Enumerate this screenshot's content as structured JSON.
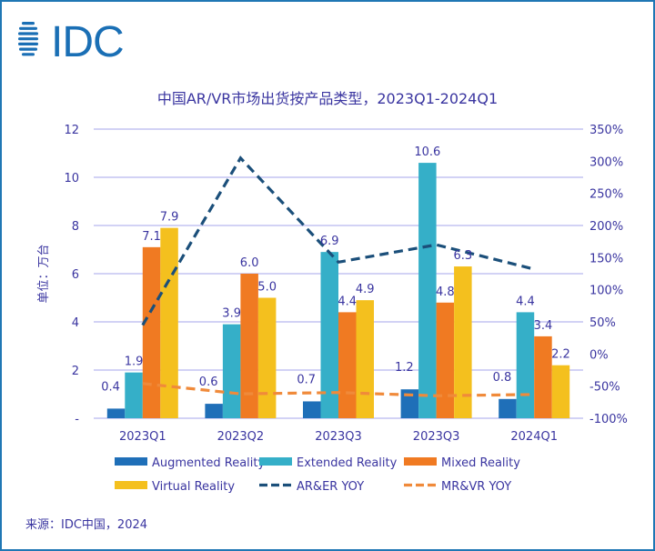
{
  "logo": {
    "text": "IDC",
    "color": "#1a6fb5"
  },
  "source": "来源：IDC中国，2024",
  "chart_data": {
    "type": "bar",
    "title": "中国AR/VR市场出货按产品类型，2023Q1-2024Q1",
    "ylabel": "单位：万台",
    "categories": [
      "2023Q1",
      "2023Q2",
      "2023Q3",
      "2023Q3",
      "2024Q1"
    ],
    "ylim": [
      0,
      12
    ],
    "yticks": [
      "-",
      "2",
      "4",
      "6",
      "8",
      "10",
      "12"
    ],
    "y2lim": [
      -100,
      350
    ],
    "y2ticks": [
      "-100%",
      "-50%",
      "0%",
      "50%",
      "100%",
      "150%",
      "200%",
      "250%",
      "300%",
      "350%"
    ],
    "grid": true,
    "legend": "bottom",
    "series": [
      {
        "name": "Augmented Reality",
        "kind": "bar",
        "color": "#1f6fb8",
        "values": [
          0.4,
          0.6,
          0.7,
          1.2,
          0.8
        ]
      },
      {
        "name": "Extended Reality",
        "kind": "bar",
        "color": "#35afc8",
        "values": [
          1.9,
          3.9,
          6.9,
          10.6,
          4.4
        ]
      },
      {
        "name": "Mixed Reality",
        "kind": "bar",
        "color": "#f07a22",
        "values": [
          7.1,
          6.0,
          4.4,
          4.8,
          3.4
        ]
      },
      {
        "name": "Virtual Reality",
        "kind": "bar",
        "color": "#f4c01e",
        "values": [
          7.9,
          5.0,
          4.9,
          6.3,
          2.2
        ]
      },
      {
        "name": "AR&ER YOY",
        "kind": "line",
        "axis": "right",
        "dashed": true,
        "color": "#1b4f7a",
        "values": [
          45,
          305,
          143,
          170,
          132
        ]
      },
      {
        "name": "MR&VR YOY",
        "kind": "line",
        "axis": "right",
        "dashed": true,
        "color": "#f08a3a",
        "values": [
          -46,
          -62,
          -60,
          -65,
          -63
        ]
      }
    ]
  }
}
